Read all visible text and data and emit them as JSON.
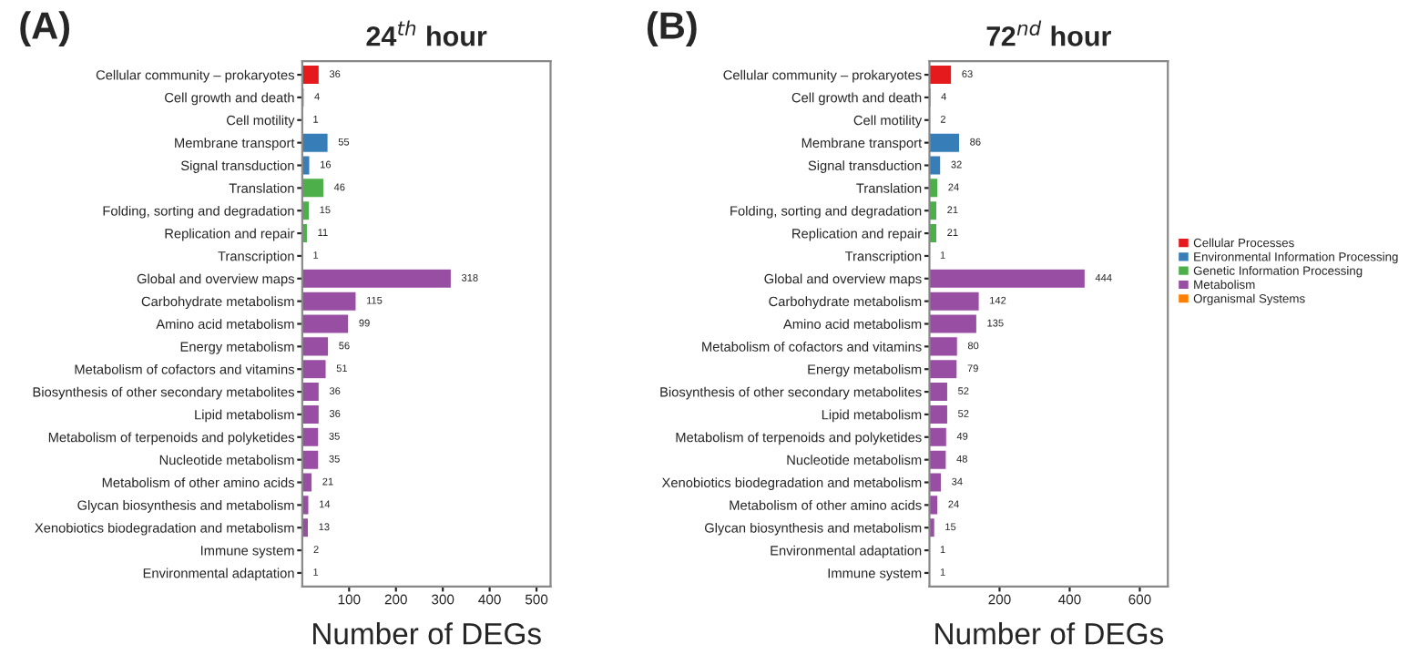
{
  "chart_data": [
    {
      "type": "bar",
      "orientation": "horizontal",
      "title": "24$^{th}$ hour",
      "xlabel": "Number of DEGs",
      "annotations": [
        "(A)"
      ],
      "categories": [
        "Cellular community – prokaryotes",
        "Cell growth and death",
        "Cell motility",
        "Membrane transport",
        "Signal transduction",
        "Translation",
        "Folding, sorting and degradation",
        "Replication and repair",
        "Transcription",
        "Global and overview maps",
        "Carbohydrate metabolism",
        "Amino acid metabolism",
        "Energy metabolism",
        "Metabolism of cofactors and vitamins",
        "Biosynthesis of other secondary metabolites",
        "Lipid metabolism",
        "Metabolism of terpenoids and polyketides",
        "Nucleotide metabolism",
        "Metabolism of other amino acids",
        "Glycan biosynthesis and metabolism",
        "Xenobiotics biodegradation and metabolism",
        "Immune system",
        "Environmental adaptation"
      ],
      "values": [
        36,
        4,
        1,
        55,
        16,
        46,
        15,
        11,
        1,
        318,
        115,
        99,
        56,
        51,
        36,
        36,
        35,
        35,
        21,
        14,
        13,
        2,
        1
      ],
      "colors": [
        "#e41a1c",
        "#e41a1c",
        "#e41a1c",
        "#377eb8",
        "#377eb8",
        "#4daf4a",
        "#4daf4a",
        "#4daf4a",
        "#4daf4a",
        "#984ea3",
        "#984ea3",
        "#984ea3",
        "#984ea3",
        "#984ea3",
        "#984ea3",
        "#984ea3",
        "#984ea3",
        "#984ea3",
        "#984ea3",
        "#984ea3",
        "#984ea3",
        "#ff7f00",
        "#ff7f00"
      ],
      "xlim": [
        0,
        530
      ],
      "xticks": [
        100,
        200,
        300,
        400,
        500
      ],
      "data_labels": true,
      "grid": false,
      "legend": false
    },
    {
      "type": "bar",
      "orientation": "horizontal",
      "title": "72$^{nd}$ hour",
      "xlabel": "Number of DEGs",
      "annotations": [
        "(B)"
      ],
      "categories": [
        "Cellular community – prokaryotes",
        "Cell growth and death",
        "Cell motility",
        "Membrane transport",
        "Signal transduction",
        "Translation",
        "Folding, sorting and degradation",
        "Replication and repair",
        "Transcription",
        "Global and overview maps",
        "Carbohydrate metabolism",
        "Amino acid metabolism",
        "Metabolism of cofactors and vitamins",
        "Energy metabolism",
        "Biosynthesis of other secondary metabolites",
        "Lipid metabolism",
        "Metabolism of terpenoids and polyketides",
        "Nucleotide metabolism",
        "Xenobiotics biodegradation and metabolism",
        "Metabolism of other amino acids",
        "Glycan biosynthesis and metabolism",
        "Environmental adaptation",
        "Immune system"
      ],
      "series": [
        {
          "name": "Cellular Processes",
          "color": "#e41a1c",
          "values": [
            63,
            4,
            2,
            null,
            null,
            null,
            null,
            null,
            null,
            null,
            null,
            null,
            null,
            null,
            null,
            null,
            null,
            null,
            null,
            null,
            null,
            null,
            null
          ]
        },
        {
          "name": "Environmental Information Processing",
          "color": "#377eb8",
          "values": [
            null,
            null,
            null,
            86,
            32,
            null,
            null,
            null,
            null,
            null,
            null,
            null,
            null,
            null,
            null,
            null,
            null,
            null,
            null,
            null,
            null,
            null,
            null
          ]
        },
        {
          "name": "Genetic Information Processing",
          "color": "#4daf4a",
          "values": [
            null,
            null,
            null,
            null,
            null,
            24,
            21,
            21,
            1,
            null,
            null,
            null,
            null,
            null,
            null,
            null,
            null,
            null,
            null,
            null,
            null,
            null,
            null
          ]
        },
        {
          "name": "Metabolism",
          "color": "#984ea3",
          "values": [
            null,
            null,
            null,
            null,
            null,
            null,
            null,
            null,
            null,
            444,
            142,
            135,
            80,
            79,
            52,
            52,
            49,
            48,
            34,
            24,
            15,
            null,
            null
          ]
        },
        {
          "name": "Organismal Systems",
          "color": "#ff7f00",
          "values": [
            null,
            null,
            null,
            null,
            null,
            null,
            null,
            null,
            null,
            null,
            null,
            null,
            null,
            null,
            null,
            null,
            null,
            null,
            null,
            null,
            null,
            1,
            1
          ]
        }
      ],
      "xlim": [
        0,
        680
      ],
      "xticks": [
        200,
        400,
        600
      ],
      "data_labels": true,
      "grid": false,
      "legend": "right"
    }
  ]
}
